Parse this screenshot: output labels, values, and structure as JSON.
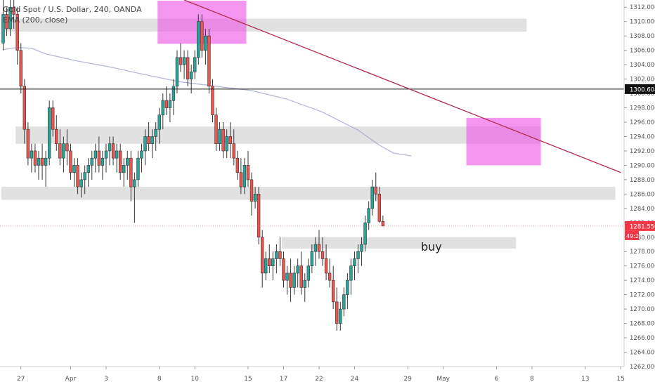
{
  "chart_data": {
    "type": "candlestick",
    "title": "Gold Spot / U.S. Dollar, 240, OANDA",
    "indicator": "EMA (200, close)",
    "price_axis": {
      "ylim": [
        1262,
        1313
      ],
      "ticks": [
        1264,
        1266,
        1268,
        1270,
        1272,
        1274,
        1276,
        1278,
        1280,
        1282,
        1284,
        1286,
        1288,
        1290,
        1292,
        1294,
        1296,
        1298,
        1300,
        1302,
        1304,
        1306,
        1308,
        1310,
        1312
      ],
      "tick_labels": [
        "1264.000",
        "1266.000",
        "1268.000",
        "1270.000",
        "1272.000",
        "1274.000",
        "1276.000",
        "1278.000",
        "1280.000",
        "1282.000",
        "1284.000",
        "1286.000",
        "1288.000",
        "1290.000",
        "1292.000",
        "1294.000",
        "1296.000",
        "1298.000",
        "1300.000",
        "1302.000",
        "1304.000",
        "1306.000",
        "1308.000",
        "1310.000",
        "1312.000"
      ],
      "bottom_partial_label": "1262.000"
    },
    "time_axis": {
      "labels": [
        {
          "text": "27",
          "bar": 5
        },
        {
          "text": "Apr",
          "bar": 19
        },
        {
          "text": "3",
          "bar": 29
        },
        {
          "text": "8",
          "bar": 44
        },
        {
          "text": "10",
          "bar": 54
        },
        {
          "text": "15",
          "bar": 69
        },
        {
          "text": "17",
          "bar": 79
        },
        {
          "text": "22",
          "bar": 89
        },
        {
          "text": "24",
          "bar": 99
        },
        {
          "text": "29",
          "bar": 114
        },
        {
          "text": "May",
          "bar": 124
        },
        {
          "text": "6",
          "bar": 139
        },
        {
          "text": "8",
          "bar": 149
        },
        {
          "text": "13",
          "bar": 164
        },
        {
          "text": "15",
          "bar": 174
        }
      ]
    },
    "current_price": {
      "value": 1281.55,
      "label": "1281.550",
      "countdown": "49:24",
      "color": "#f23645"
    },
    "horizontal_line": {
      "value": 1300.604,
      "label": "1300.604"
    },
    "trendline": {
      "from": {
        "bar": 51,
        "price": 1313
      },
      "to": {
        "bar": 174,
        "price": 1289
      },
      "color": "#b02a4a"
    },
    "zones_gray": [
      {
        "bar_from": 0,
        "bar_to": 148,
        "price_from": 1308.6,
        "price_to": 1310.4
      },
      {
        "bar_from": 4,
        "bar_to": 152,
        "price_from": 1293.0,
        "price_to": 1295.4
      },
      {
        "bar_from": 0,
        "bar_to": 173,
        "price_from": 1285.2,
        "price_to": 1287.0
      },
      {
        "bar_from": 79,
        "bar_to": 145,
        "price_from": 1278.4,
        "price_to": 1280.0
      }
    ],
    "zones_pink": [
      {
        "bar_from": 44,
        "bar_to": 69,
        "price_from": 1306.9,
        "price_to": 1312.9
      },
      {
        "bar_from": 131,
        "bar_to": 152,
        "price_from": 1290.0,
        "price_to": 1296.6
      }
    ],
    "annotation": {
      "text": "buy"
    },
    "ema": [
      [
        0,
        1306.1
      ],
      [
        4,
        1306.4
      ],
      [
        8,
        1306.3
      ],
      [
        12,
        1305.5
      ],
      [
        20,
        1304.6
      ],
      [
        30,
        1303.7
      ],
      [
        40,
        1302.6
      ],
      [
        50,
        1301.6
      ],
      [
        60,
        1301.0
      ],
      [
        70,
        1300.4
      ],
      [
        80,
        1299.2
      ],
      [
        90,
        1297.4
      ],
      [
        100,
        1294.9
      ],
      [
        106,
        1292.8
      ],
      [
        110,
        1291.7
      ],
      [
        115,
        1291.3
      ]
    ],
    "candles": [
      [
        1307,
        1313,
        1306,
        1311
      ],
      [
        1311,
        1312,
        1308,
        1309
      ],
      [
        1309,
        1313,
        1308,
        1312
      ],
      [
        1312,
        1313,
        1309,
        1311
      ],
      [
        1311,
        1312,
        1304,
        1306
      ],
      [
        1306,
        1307,
        1300,
        1301
      ],
      [
        1301,
        1302,
        1293,
        1295
      ],
      [
        1295,
        1296,
        1290,
        1291
      ],
      [
        1291,
        1293,
        1289,
        1292
      ],
      [
        1292,
        1293,
        1289,
        1290
      ],
      [
        1290,
        1292,
        1288,
        1291
      ],
      [
        1291,
        1293,
        1288,
        1290
      ],
      [
        1290,
        1292,
        1287,
        1291
      ],
      [
        1291,
        1299,
        1290,
        1298
      ],
      [
        1298,
        1299,
        1294,
        1295
      ],
      [
        1295,
        1297,
        1292,
        1293
      ],
      [
        1293,
        1295,
        1290,
        1291
      ],
      [
        1291,
        1294,
        1289,
        1293
      ],
      [
        1293,
        1295,
        1290,
        1292
      ],
      [
        1292,
        1293,
        1288,
        1289
      ],
      [
        1289,
        1291,
        1287,
        1290
      ],
      [
        1290,
        1291,
        1286,
        1287
      ],
      [
        1287,
        1289,
        1285.5,
        1288
      ],
      [
        1288,
        1290,
        1286,
        1289
      ],
      [
        1289,
        1291,
        1287,
        1290
      ],
      [
        1290,
        1292,
        1288,
        1291
      ],
      [
        1291,
        1293,
        1289,
        1292
      ],
      [
        1292,
        1294,
        1289,
        1290
      ],
      [
        1290,
        1292,
        1288,
        1291
      ],
      [
        1291,
        1293,
        1289,
        1292
      ],
      [
        1292,
        1294,
        1290,
        1293
      ],
      [
        1293,
        1294,
        1290,
        1291
      ],
      [
        1291,
        1293,
        1289,
        1292
      ],
      [
        1292,
        1293,
        1288,
        1289
      ],
      [
        1289,
        1291,
        1287,
        1290
      ],
      [
        1290,
        1292,
        1288,
        1291
      ],
      [
        1291,
        1292,
        1285,
        1287
      ],
      [
        1287,
        1289,
        1282,
        1288
      ],
      [
        1288,
        1292,
        1287,
        1291
      ],
      [
        1291,
        1293,
        1289,
        1292
      ],
      [
        1292,
        1295,
        1290,
        1294
      ],
      [
        1294,
        1296,
        1292,
        1293
      ],
      [
        1293,
        1295,
        1291,
        1294
      ],
      [
        1294,
        1296,
        1292,
        1295
      ],
      [
        1295,
        1298,
        1293,
        1297
      ],
      [
        1297,
        1300,
        1295,
        1299
      ],
      [
        1299,
        1301,
        1297,
        1298
      ],
      [
        1298,
        1300,
        1296,
        1299
      ],
      [
        1299,
        1302,
        1297,
        1301
      ],
      [
        1301,
        1306,
        1300,
        1305
      ],
      [
        1305,
        1307,
        1303,
        1304
      ],
      [
        1304,
        1306,
        1302,
        1305
      ],
      [
        1305,
        1306,
        1301,
        1302
      ],
      [
        1302,
        1304,
        1300,
        1303
      ],
      [
        1303,
        1306,
        1302,
        1305
      ],
      [
        1305,
        1311,
        1304,
        1310
      ],
      [
        1310,
        1311,
        1305,
        1306
      ],
      [
        1306,
        1309,
        1304,
        1308
      ],
      [
        1308,
        1309,
        1300,
        1301
      ],
      [
        1301,
        1302,
        1296,
        1297
      ],
      [
        1297,
        1298,
        1292,
        1293
      ],
      [
        1293,
        1296,
        1292,
        1295
      ],
      [
        1295,
        1296,
        1291,
        1292
      ],
      [
        1292,
        1295,
        1291,
        1294
      ],
      [
        1294,
        1296,
        1291,
        1293
      ],
      [
        1293,
        1295,
        1290,
        1291
      ],
      [
        1291,
        1292,
        1288,
        1289
      ],
      [
        1289,
        1291,
        1286,
        1287
      ],
      [
        1287,
        1291,
        1286,
        1290
      ],
      [
        1290,
        1292,
        1287,
        1288
      ],
      [
        1288,
        1289,
        1283,
        1285
      ],
      [
        1285,
        1287,
        1284,
        1286
      ],
      [
        1286,
        1287,
        1279,
        1280
      ],
      [
        1280,
        1281,
        1273,
        1275
      ],
      [
        1275,
        1278,
        1274,
        1277
      ],
      [
        1277,
        1279,
        1275,
        1276
      ],
      [
        1276,
        1278,
        1274,
        1277
      ],
      [
        1277,
        1279,
        1275,
        1278
      ],
      [
        1278,
        1280,
        1276,
        1277
      ],
      [
        1277,
        1278,
        1273,
        1274
      ],
      [
        1274,
        1276,
        1272,
        1275
      ],
      [
        1275,
        1277,
        1271,
        1273
      ],
      [
        1273,
        1276,
        1272,
        1275
      ],
      [
        1275,
        1277,
        1273,
        1276
      ],
      [
        1276,
        1278,
        1272,
        1273
      ],
      [
        1273,
        1275,
        1271,
        1274
      ],
      [
        1274,
        1277,
        1273,
        1276
      ],
      [
        1276,
        1279,
        1275,
        1278
      ],
      [
        1278,
        1280,
        1276,
        1279
      ],
      [
        1279,
        1281,
        1277,
        1278
      ],
      [
        1278,
        1280,
        1276,
        1277
      ],
      [
        1277,
        1279,
        1274,
        1275
      ],
      [
        1275,
        1277,
        1273,
        1274
      ],
      [
        1274,
        1276,
        1270,
        1271
      ],
      [
        1271,
        1273,
        1267,
        1268
      ],
      [
        1268,
        1271,
        1267,
        1270
      ],
      [
        1270,
        1273,
        1269,
        1272
      ],
      [
        1272,
        1275,
        1270,
        1274
      ],
      [
        1274,
        1277,
        1272,
        1276
      ],
      [
        1276,
        1278,
        1274,
        1277
      ],
      [
        1277,
        1279,
        1275,
        1278
      ],
      [
        1278,
        1280,
        1276,
        1279
      ],
      [
        1279,
        1283,
        1278,
        1282
      ],
      [
        1282,
        1285,
        1281,
        1284
      ],
      [
        1284,
        1288,
        1283,
        1287
      ],
      [
        1287,
        1289,
        1285,
        1286
      ],
      [
        1286,
        1287,
        1282,
        1282.2
      ],
      [
        1282.2,
        1283,
        1281.55,
        1281.55
      ]
    ]
  }
}
